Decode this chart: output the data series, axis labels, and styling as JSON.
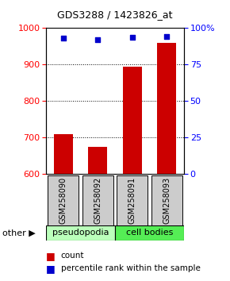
{
  "title": "GDS3288 / 1423826_at",
  "categories": [
    "GSM258090",
    "GSM258092",
    "GSM258091",
    "GSM258093"
  ],
  "bar_values": [
    710,
    675,
    895,
    960
  ],
  "percentile_values": [
    93,
    92,
    93.5,
    94
  ],
  "ylim_left": [
    600,
    1000
  ],
  "ylim_right": [
    0,
    100
  ],
  "yticks_left": [
    600,
    700,
    800,
    900,
    1000
  ],
  "yticks_right": [
    0,
    25,
    50,
    75,
    100
  ],
  "bar_color": "#cc0000",
  "dot_color": "#0000cc",
  "group_labels": [
    "pseudopodia",
    "cell bodies"
  ],
  "group_colors_light": "#bbffbb",
  "group_colors_bright": "#55ee55",
  "bar_bottom": 600,
  "legend_count_color": "#cc0000",
  "legend_pct_color": "#0000cc",
  "other_label": "other",
  "label_box_color": "#cccccc"
}
